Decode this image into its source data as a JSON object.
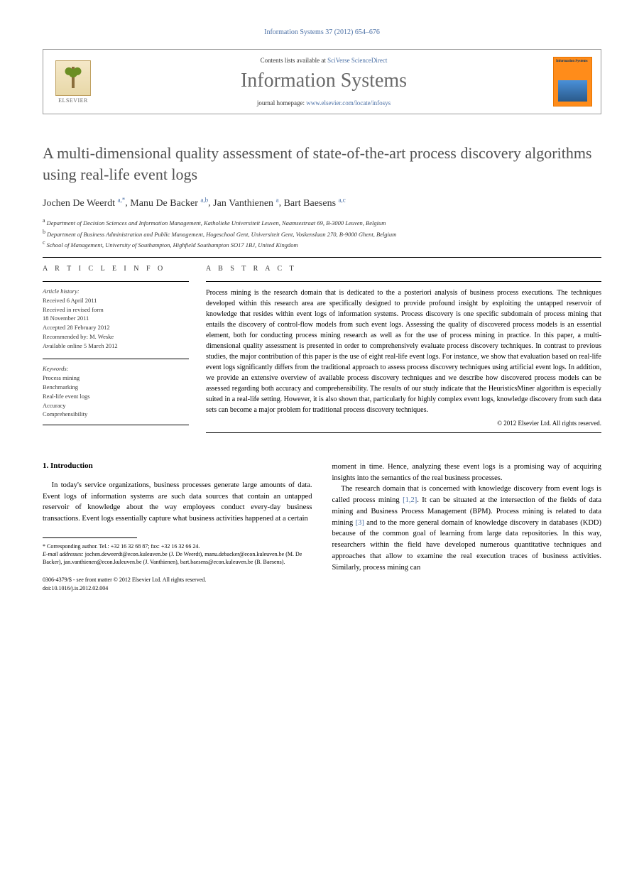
{
  "journal_ref": "Information Systems 37 (2012) 654–676",
  "header": {
    "elsevier": "ELSEVIER",
    "contents_prefix": "Contents lists available at ",
    "contents_link": "SciVerse ScienceDirect",
    "journal_title": "Information Systems",
    "homepage_prefix": "journal homepage: ",
    "homepage_url": "www.elsevier.com/locate/infosys",
    "cover_title": "Information Systems"
  },
  "article": {
    "title": "A multi-dimensional quality assessment of state-of-the-art process discovery algorithms using real-life event logs",
    "authors_html_parts": [
      {
        "name": "Jochen De Weerdt",
        "aff": "a,",
        "corr": "*"
      },
      {
        "name": "Manu De Backer",
        "aff": "a,b"
      },
      {
        "name": "Jan Vanthienen",
        "aff": "a"
      },
      {
        "name": "Bart Baesens",
        "aff": "a,c"
      }
    ],
    "affiliations": [
      {
        "key": "a",
        "text": "Department of Decision Sciences and Information Management, Katholieke Universiteit Leuven, Naamsestraat 69, B-3000 Leuven, Belgium"
      },
      {
        "key": "b",
        "text": "Department of Business Administration and Public Management, Hogeschool Gent, Universiteit Gent, Voskenslaan 270, B-9000 Ghent, Belgium"
      },
      {
        "key": "c",
        "text": "School of Management, University of Southampton, Highfield Southampton SO17 1BJ, United Kingdom"
      }
    ]
  },
  "info": {
    "label": "A R T I C L E   I N F O",
    "history_label": "Article history:",
    "history": [
      "Received 6 April 2011",
      "Received in revised form",
      "18 November 2011",
      "Accepted 28 February 2012",
      "Recommended by: M. Weske",
      "Available online 5 March 2012"
    ],
    "keywords_label": "Keywords:",
    "keywords": [
      "Process mining",
      "Benchmarking",
      "Real-life event logs",
      "Accuracy",
      "Comprehensibility"
    ]
  },
  "abstract": {
    "label": "A B S T R A C T",
    "text": "Process mining is the research domain that is dedicated to the a posteriori analysis of business process executions. The techniques developed within this research area are specifically designed to provide profound insight by exploiting the untapped reservoir of knowledge that resides within event logs of information systems. Process discovery is one specific subdomain of process mining that entails the discovery of control-flow models from such event logs. Assessing the quality of discovered process models is an essential element, both for conducting process mining research as well as for the use of process mining in practice. In this paper, a multi-dimensional quality assessment is presented in order to comprehensively evaluate process discovery techniques. In contrast to previous studies, the major contribution of this paper is the use of eight real-life event logs. For instance, we show that evaluation based on real-life event logs significantly differs from the traditional approach to assess process discovery techniques using artificial event logs. In addition, we provide an extensive overview of available process discovery techniques and we describe how discovered process models can be assessed regarding both accuracy and comprehensibility. The results of our study indicate that the HeuristicsMiner algorithm is especially suited in a real-life setting. However, it is also shown that, particularly for highly complex event logs, knowledge discovery from such data sets can become a major problem for traditional process discovery techniques.",
    "copyright": "© 2012 Elsevier Ltd. All rights reserved."
  },
  "body": {
    "heading": "1. Introduction",
    "p1": "In today's service organizations, business processes generate large amounts of data. Event logs of information systems are such data sources that contain an untapped reservoir of knowledge about the way employees conduct every-day business transactions. Event logs essentially capture what business activities happened at a certain",
    "p2": "moment in time. Hence, analyzing these event logs is a promising way of acquiring insights into the semantics of the real business processes.",
    "p3_pre": "The research domain that is concerned with knowledge discovery from event logs is called process mining ",
    "p3_ref1": "[1,2]",
    "p3_mid": ". It can be situated at the intersection of the fields of data mining and Business Process Management (BPM). Process mining is related to data mining ",
    "p3_ref2": "[3]",
    "p3_post": " and to the more general domain of knowledge discovery in databases (KDD) because of the common goal of learning from large data repositories. In this way, researchers within the field have developed numerous quantitative techniques and approaches that allow to examine the real execution traces of business activities. Similarly, process mining can"
  },
  "footnotes": {
    "corr": "* Corresponding author. Tel.: +32 16 32 68 87; fax: +32 16 32 66 24.",
    "email_label": "E-mail addresses:",
    "emails": " jochen.deweerdt@econ.kuleuven.be (J. De Weerdt), manu.debacker@econ.kuleuven.be (M. De Backer), jan.vanthienen@econ.kuleuven.be (J. Vanthienen), bart.baesens@econ.kuleuven.be (B. Baesens)."
  },
  "footer": {
    "line1": "0306-4379/$ - see front matter © 2012 Elsevier Ltd. All rights reserved.",
    "line2": "doi:10.1016/j.is.2012.02.004"
  },
  "colors": {
    "link": "#4a6fa5",
    "title_gray": "#505050",
    "cover_orange": "#ff8c1a"
  }
}
